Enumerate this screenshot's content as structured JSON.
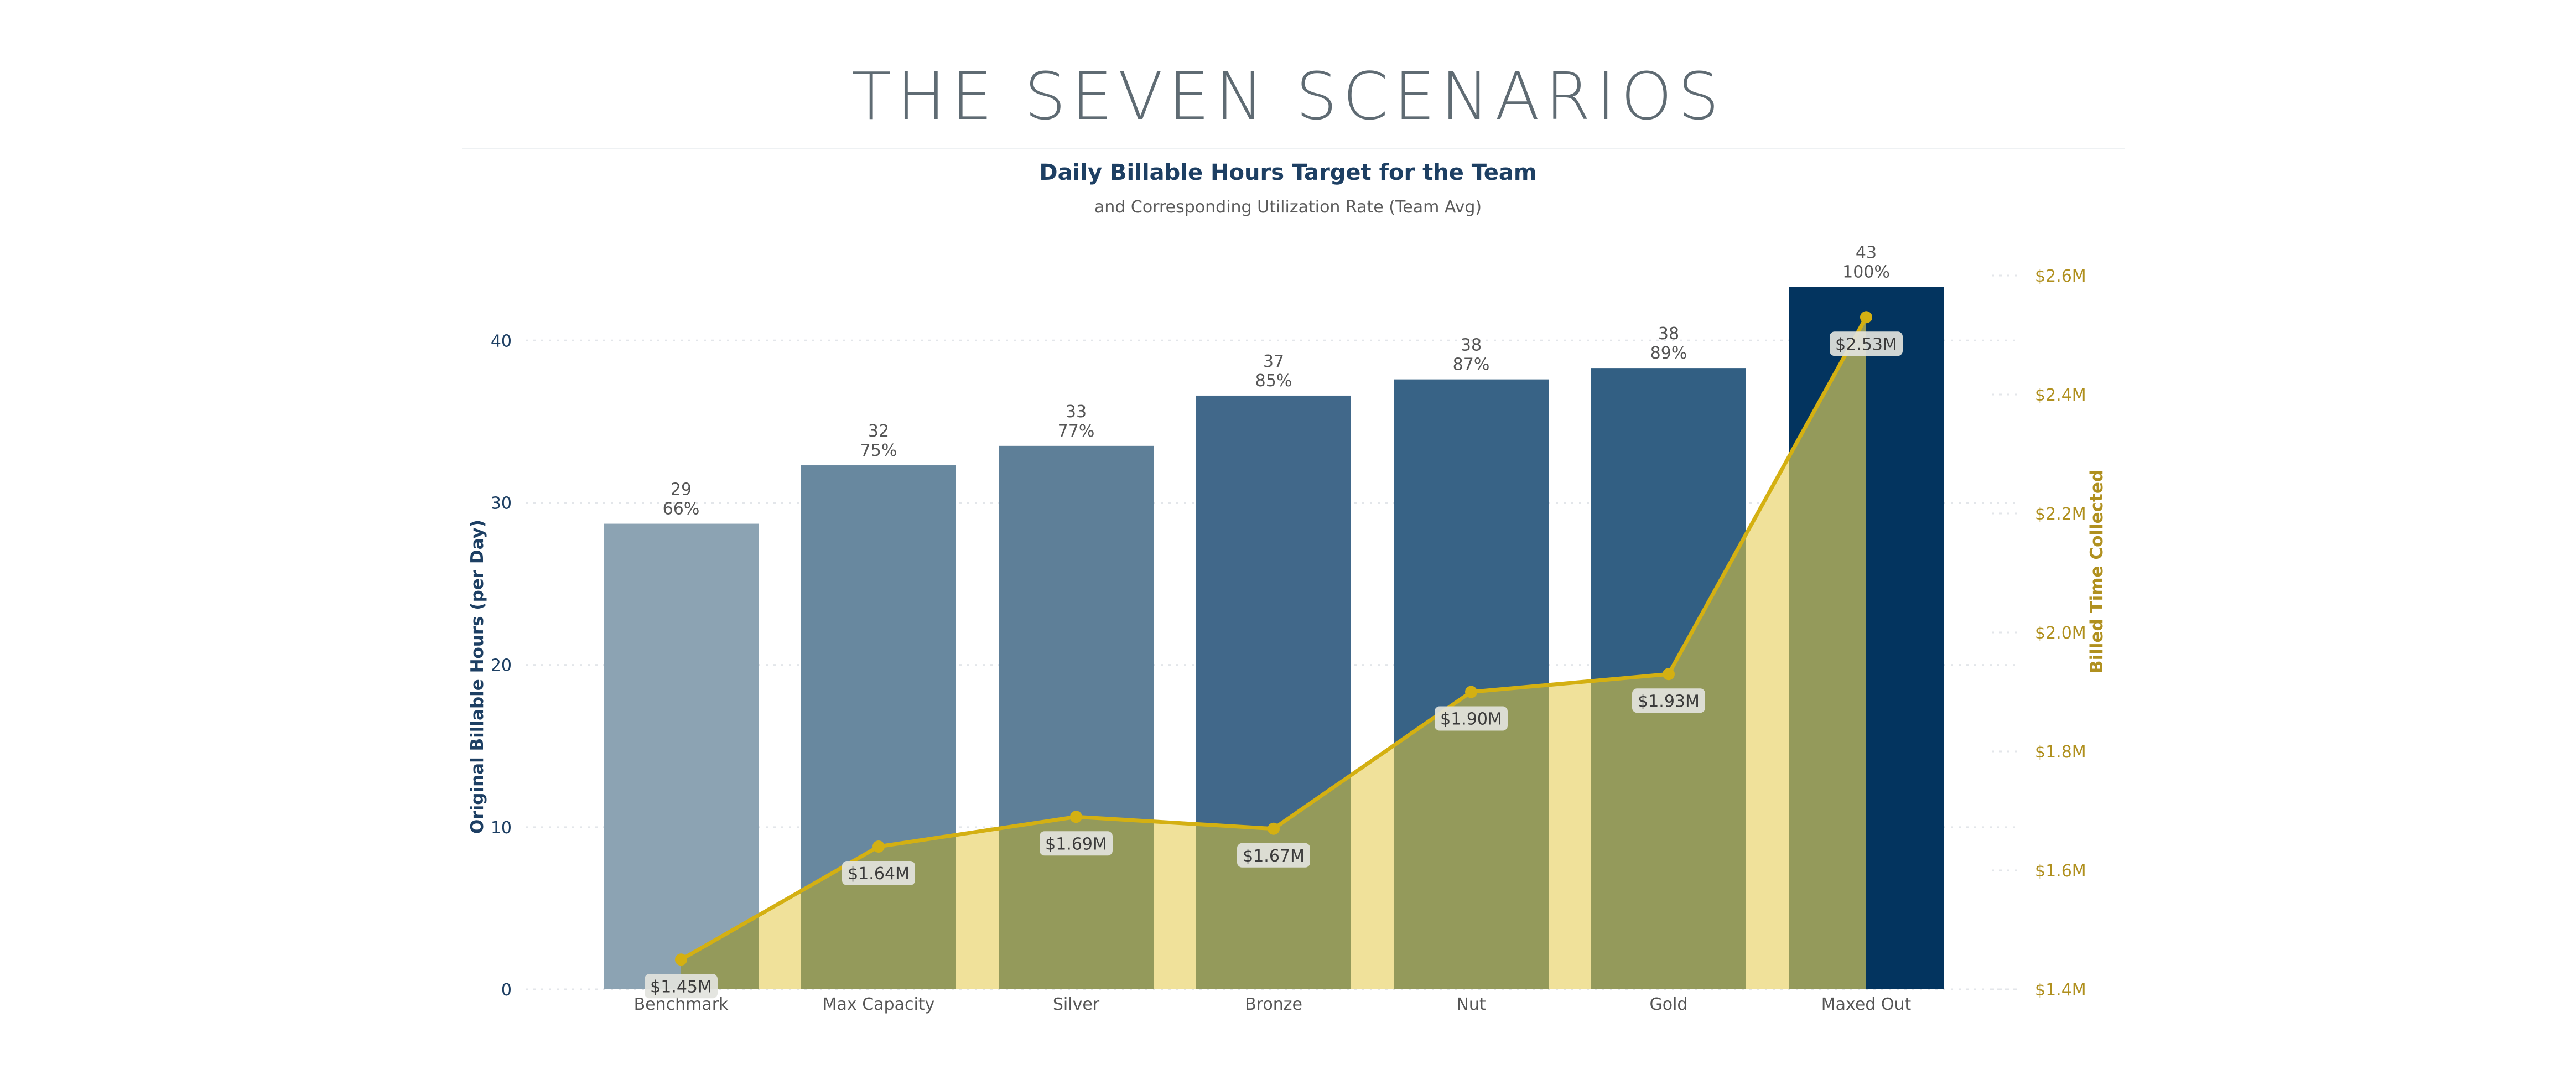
{
  "page": {
    "title": "THE SEVEN SCENARIOS"
  },
  "colors": {
    "bars": [
      "#8ca3b3",
      "#68889f",
      "#5e7f98",
      "#41688a",
      "#386386",
      "#325f83",
      "#03345f"
    ],
    "area_fill": "#f0e19a",
    "area_overlap": "#5c6e36",
    "line": "#d4b012",
    "line_label_bg": "#e2e3dd",
    "left_axis": "#1d3f63",
    "right_axis": "#b0901f",
    "gridline": "#e3e6ea"
  },
  "chart_data": {
    "type": "bar",
    "title": "Daily Billable Hours Target for the Team",
    "subtitle": "and Corresponding Utilization Rate (Team Avg)",
    "categories": [
      "Benchmark",
      "Max Capacity",
      "Silver",
      "Bronze",
      "Nut",
      "Gold",
      "Maxed Out"
    ],
    "ylabel": "Original Billable Hours (per Day)",
    "ylim": [
      0,
      44
    ],
    "yticks": [
      0,
      10,
      20,
      30,
      40
    ],
    "y2label": "Billed Time Collected",
    "y2lim": [
      1.4,
      2.6
    ],
    "y2ticks": [
      "$1.4M",
      "$1.6M",
      "$1.8M",
      "$2.0M",
      "$2.2M",
      "$2.4M",
      "$2.6M"
    ],
    "y2tick_values": [
      1.4,
      1.6,
      1.8,
      2.0,
      2.2,
      2.4,
      2.6
    ],
    "grid": true,
    "series": [
      {
        "name": "Original Billable Hours (per Day)",
        "type": "bar",
        "axis": "left",
        "values": [
          28.7,
          32.3,
          33.5,
          36.6,
          37.6,
          38.3,
          43.3
        ],
        "labels": [
          "29",
          "32",
          "33",
          "37",
          "38",
          "38",
          "43"
        ],
        "utilization_labels": [
          "66%",
          "75%",
          "77%",
          "85%",
          "87%",
          "89%",
          "100%"
        ]
      },
      {
        "name": "Billed Time Collected",
        "type": "area_line",
        "axis": "right",
        "values": [
          1.45,
          1.64,
          1.69,
          1.67,
          1.9,
          1.93,
          2.53
        ],
        "labels": [
          "$1.45M",
          "$1.64M",
          "$1.69M",
          "$1.67M",
          "$1.90M",
          "$1.93M",
          "$2.53M"
        ]
      }
    ]
  }
}
